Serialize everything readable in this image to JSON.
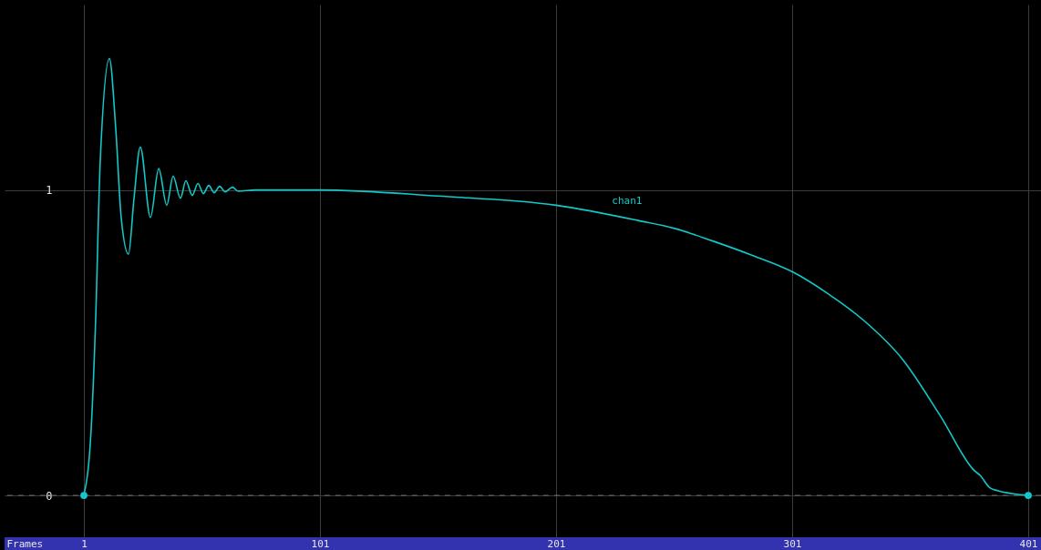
{
  "chart_data": {
    "type": "line",
    "xlabel": "Frames",
    "x": [
      1,
      4.1,
      6,
      7.9,
      11.8,
      14.5,
      16.8,
      19.9,
      22.2,
      24.9,
      29.2,
      32.7,
      36.1,
      38.8,
      41.9,
      44.2,
      46.9,
      49.3,
      51.6,
      53.9,
      56.2,
      58.5,
      60.8,
      63.9,
      66.3,
      73.6,
      101,
      150.8,
      201,
      235.7,
      251.2,
      267.3,
      283.4,
      301.9,
      315.5,
      331.6,
      347.7,
      363.8,
      378.3,
      380.7,
      384.7,
      388.3,
      394,
      401
    ],
    "series": [
      {
        "name": "chan1",
        "color": "#12c8c8",
        "values": [
          0,
          0.22,
          0.58,
          1.09,
          1.43,
          1.2,
          0.91,
          0.79,
          0.97,
          1.14,
          0.91,
          1.07,
          0.95,
          1.045,
          0.973,
          1.03,
          0.982,
          1.021,
          0.988,
          1.015,
          0.991,
          1.012,
          0.994,
          1.009,
          0.996,
          1,
          1,
          0.98,
          0.95,
          0.9,
          0.874,
          0.833,
          0.788,
          0.729,
          0.664,
          0.571,
          0.446,
          0.26,
          0.08,
          0.065,
          0.025,
          0.015,
          0.006,
          0
        ]
      },
      {
        "type": "scatter",
        "color": "#12c8c8",
        "marker": "circle",
        "x": [
          1,
          401
        ],
        "values": [
          0,
          0
        ]
      }
    ],
    "xlim": [
      -32.6,
      406.4
    ],
    "ylim": [
      -0.137,
      1.607
    ],
    "xticks": [
      1,
      101,
      201,
      301,
      401
    ],
    "yticks": [
      0,
      1
    ],
    "grid": true,
    "ref_lines": [
      {
        "axis": "y",
        "value": 0,
        "color": "#6e6e6e",
        "line_style": "dashed"
      }
    ]
  }
}
